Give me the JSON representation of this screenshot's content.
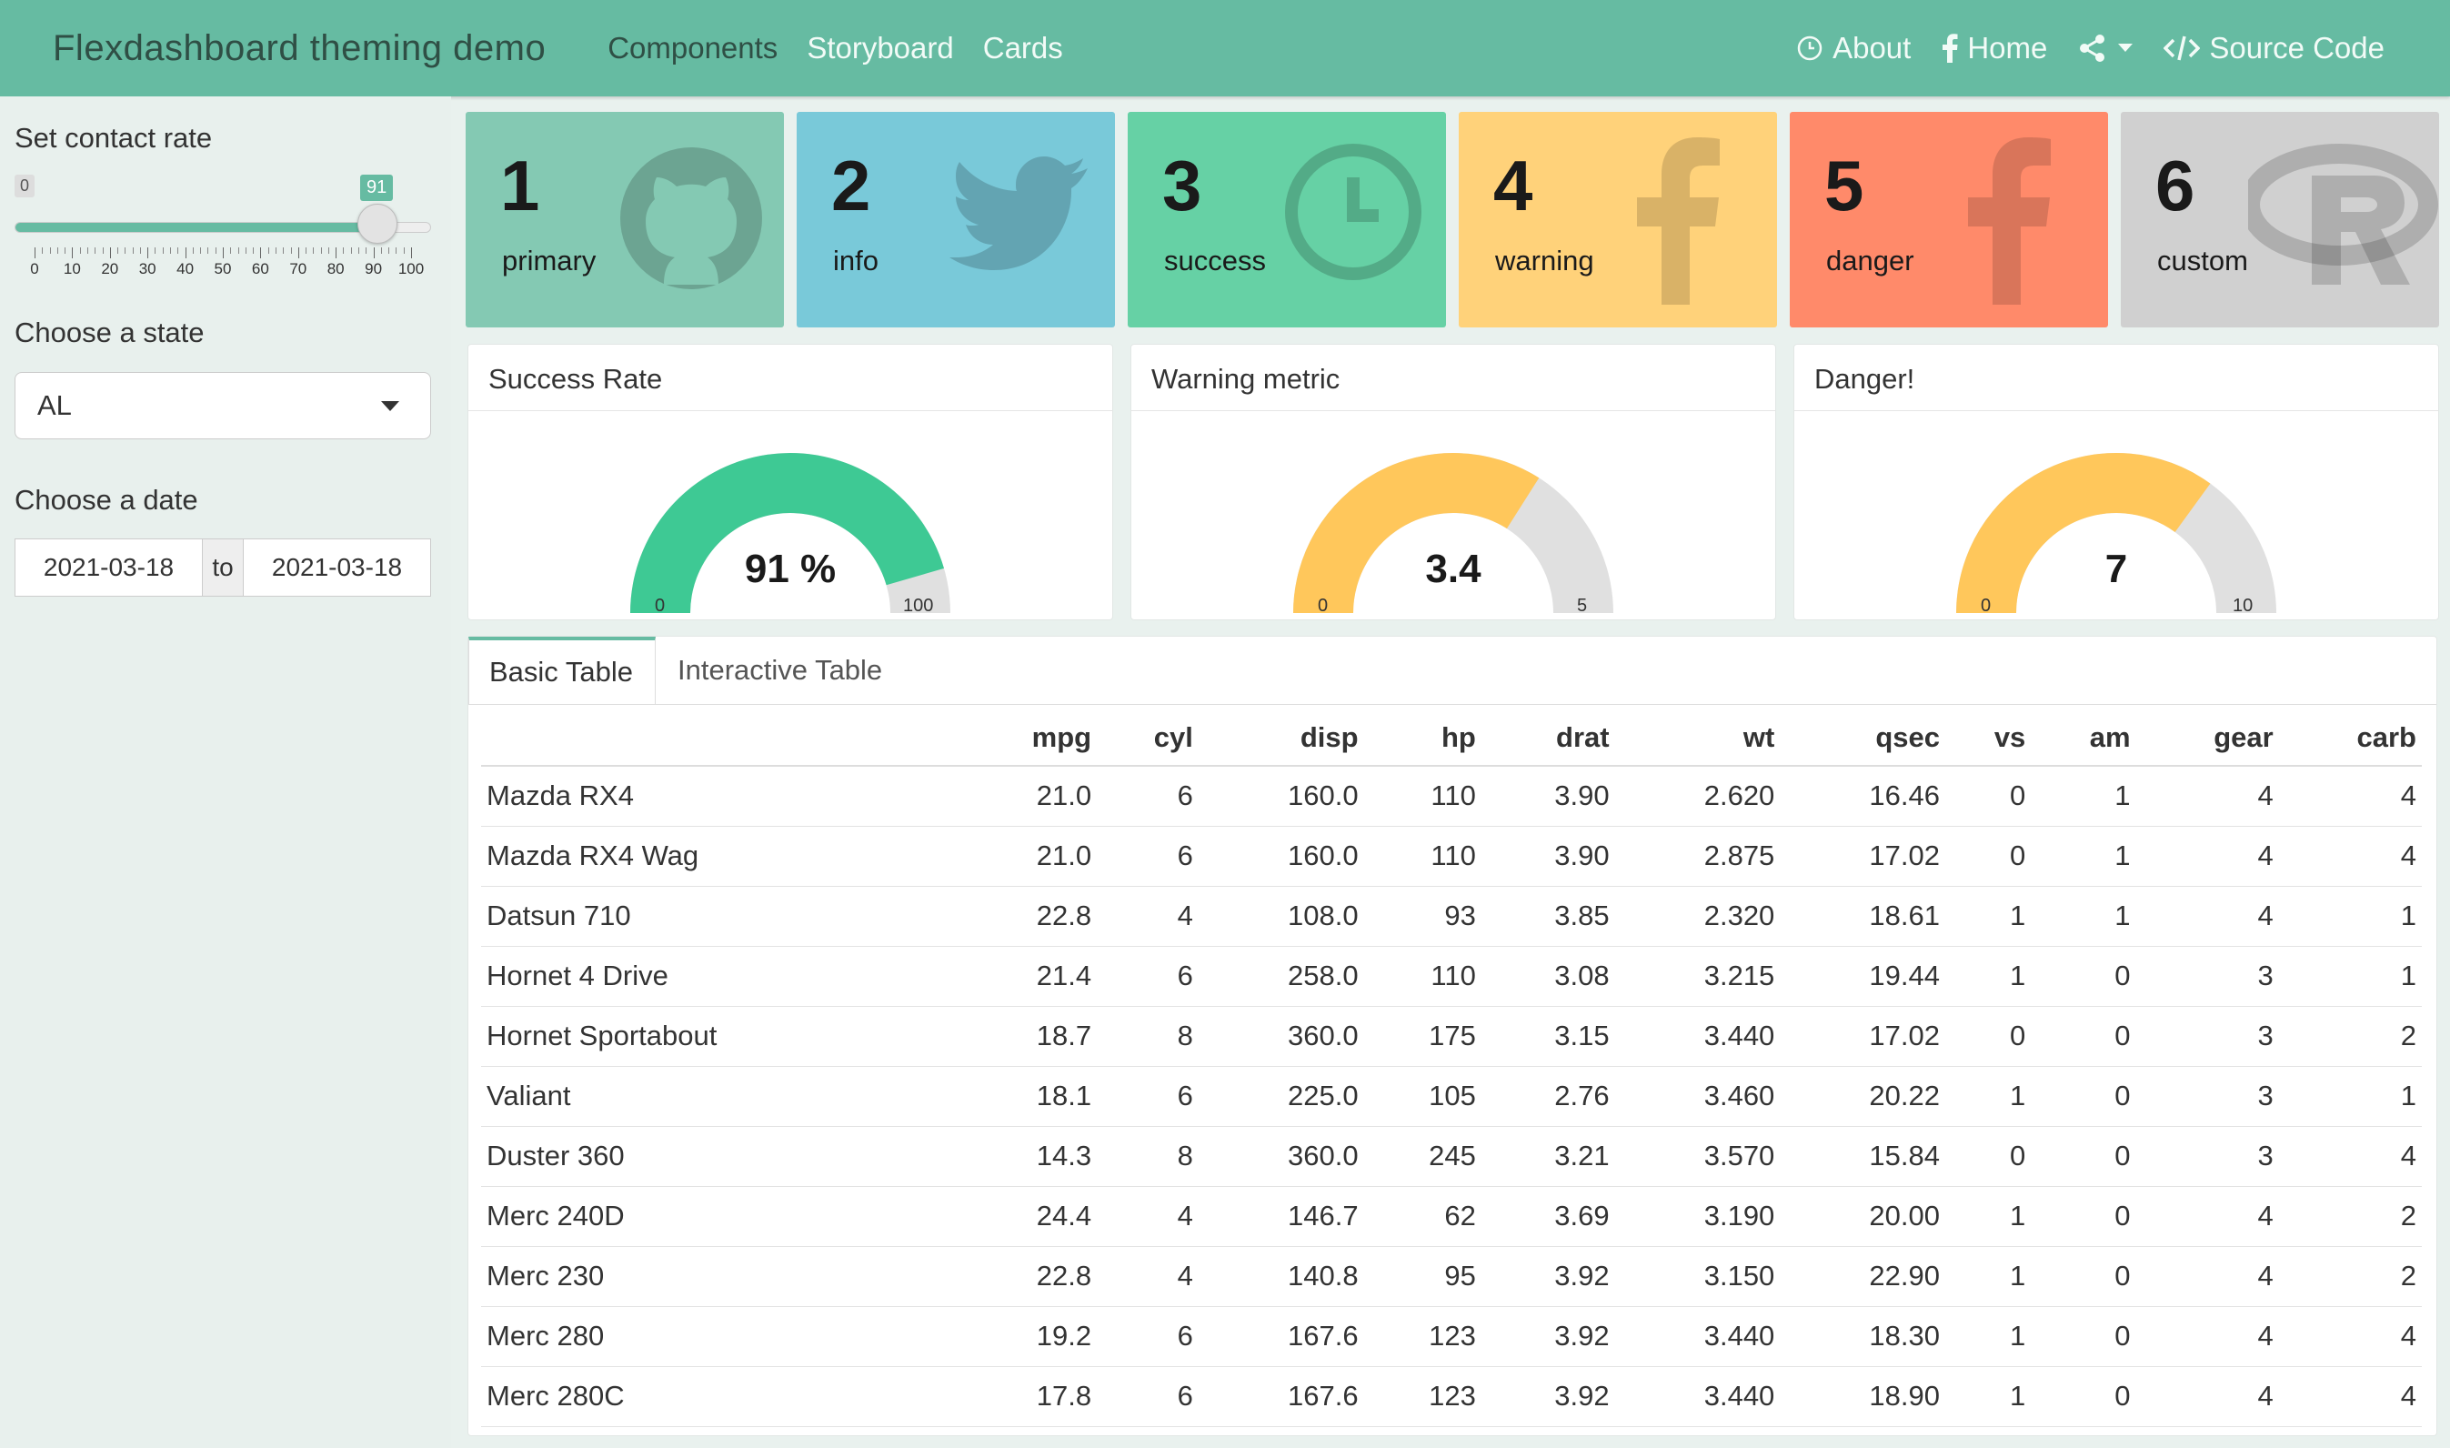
{
  "navbar": {
    "brand": "Flexdashboard theming demo",
    "tabs": [
      {
        "label": "Components",
        "active": true
      },
      {
        "label": "Storyboard",
        "active": false
      },
      {
        "label": "Cards",
        "active": false
      }
    ],
    "right": {
      "about": "About",
      "home": "Home",
      "source": "Source Code"
    },
    "colors": {
      "bar": "#66bba2",
      "active_text": "#2f4f45"
    }
  },
  "sidebar": {
    "slider": {
      "label": "Set contact rate",
      "min": "0",
      "max": 100,
      "value": "91",
      "ticks": [
        "0",
        "10",
        "20",
        "30",
        "40",
        "50",
        "60",
        "70",
        "80",
        "90",
        "100"
      ]
    },
    "state": {
      "label": "Choose a state",
      "selected": "AL"
    },
    "date": {
      "label": "Choose a date",
      "start": "2021-03-18",
      "sep": "to",
      "end": "2021-03-18"
    }
  },
  "value_boxes": [
    {
      "value": "1",
      "caption": "primary",
      "color": "#84c9b3",
      "icon": "github-icon"
    },
    {
      "value": "2",
      "caption": "info",
      "color": "#79c9d9",
      "icon": "twitter-icon"
    },
    {
      "value": "3",
      "caption": "success",
      "color": "#66d1a5",
      "icon": "clock-icon"
    },
    {
      "value": "4",
      "caption": "warning",
      "color": "#ffd27a",
      "icon": "facebook-icon"
    },
    {
      "value": "5",
      "caption": "danger",
      "color": "#ff8a6a",
      "icon": "facebook-icon"
    },
    {
      "value": "6",
      "caption": "custom",
      "color": "#d0d0d0",
      "icon": "r-logo-icon"
    }
  ],
  "gauges": [
    {
      "title": "Success Rate",
      "value": 91,
      "display": "91 %",
      "min": "0",
      "max": "100",
      "color": "#3ec994"
    },
    {
      "title": "Warning metric",
      "value": 3.4,
      "display": "3.4",
      "min": "0",
      "max": "5",
      "color": "#ffc75b"
    },
    {
      "title": "Danger!",
      "value": 7,
      "display": "7",
      "min": "0",
      "max": "10",
      "color": "#ffc75b"
    }
  ],
  "table_tabs": [
    {
      "label": "Basic Table",
      "active": true
    },
    {
      "label": "Interactive Table",
      "active": false
    }
  ],
  "table": {
    "columns": [
      "",
      "mpg",
      "cyl",
      "disp",
      "hp",
      "drat",
      "wt",
      "qsec",
      "vs",
      "am",
      "gear",
      "carb"
    ],
    "rows": [
      [
        "Mazda RX4",
        "21.0",
        "6",
        "160.0",
        "110",
        "3.90",
        "2.620",
        "16.46",
        "0",
        "1",
        "4",
        "4"
      ],
      [
        "Mazda RX4 Wag",
        "21.0",
        "6",
        "160.0",
        "110",
        "3.90",
        "2.875",
        "17.02",
        "0",
        "1",
        "4",
        "4"
      ],
      [
        "Datsun 710",
        "22.8",
        "4",
        "108.0",
        "93",
        "3.85",
        "2.320",
        "18.61",
        "1",
        "1",
        "4",
        "1"
      ],
      [
        "Hornet 4 Drive",
        "21.4",
        "6",
        "258.0",
        "110",
        "3.08",
        "3.215",
        "19.44",
        "1",
        "0",
        "3",
        "1"
      ],
      [
        "Hornet Sportabout",
        "18.7",
        "8",
        "360.0",
        "175",
        "3.15",
        "3.440",
        "17.02",
        "0",
        "0",
        "3",
        "2"
      ],
      [
        "Valiant",
        "18.1",
        "6",
        "225.0",
        "105",
        "2.76",
        "3.460",
        "20.22",
        "1",
        "0",
        "3",
        "1"
      ],
      [
        "Duster 360",
        "14.3",
        "8",
        "360.0",
        "245",
        "3.21",
        "3.570",
        "15.84",
        "0",
        "0",
        "3",
        "4"
      ],
      [
        "Merc 240D",
        "24.4",
        "4",
        "146.7",
        "62",
        "3.69",
        "3.190",
        "20.00",
        "1",
        "0",
        "4",
        "2"
      ],
      [
        "Merc 230",
        "22.8",
        "4",
        "140.8",
        "95",
        "3.92",
        "3.150",
        "22.90",
        "1",
        "0",
        "4",
        "2"
      ],
      [
        "Merc 280",
        "19.2",
        "6",
        "167.6",
        "123",
        "3.92",
        "3.440",
        "18.30",
        "1",
        "0",
        "4",
        "4"
      ],
      [
        "Merc 280C",
        "17.8",
        "6",
        "167.6",
        "123",
        "3.92",
        "3.440",
        "18.90",
        "1",
        "0",
        "4",
        "4"
      ]
    ]
  }
}
